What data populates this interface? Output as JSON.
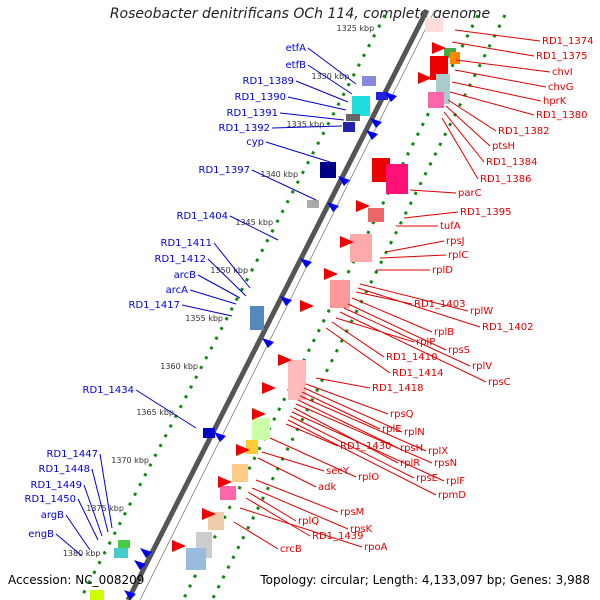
{
  "title": "Roseobacter denitrificans OCh 114, complete genome",
  "footer": {
    "accession": "Accession: NC_008209",
    "topology": "Topology: circular; Length: 4,133,097 bp; Genes: 3,988"
  },
  "colors": {
    "left_labels": "#0000cc",
    "right_labels": "#dd0000",
    "axis_major": "#555555",
    "axis_minor": "#999999",
    "ticks": "#118811"
  },
  "kbp_ticks": [
    "1325 kbp",
    "1330 kbp",
    "1335 kbp",
    "1340 kbp",
    "1345 kbp",
    "1350 kbp",
    "1355 kbp",
    "1360 kbp",
    "1365 kbp",
    "1370 kbp",
    "1375 kbp",
    "1380 kbp"
  ],
  "left_labels": [
    "etfA",
    "etfB",
    "RD1_1389",
    "RD1_1390",
    "RD1_1391",
    "RD1_1392",
    "cyp",
    "RD1_1397",
    "RD1_1404",
    "RD1_1411",
    "RD1_1412",
    "arcB",
    "arcA",
    "RD1_1417",
    "RD1_1434",
    "RD1_1447",
    "RD1_1448",
    "RD1_1449",
    "RD1_1450",
    "argB",
    "engB"
  ],
  "right_labels": [
    "RD1_1374",
    "RD1_1375",
    "chvI",
    "chvG",
    "hprK",
    "RD1_1380",
    "RD1_1382",
    "ptsH",
    "RD1_1384",
    "RD1_1386",
    "parC",
    "RD1_1395",
    "tufA",
    "rpsJ",
    "rplC",
    "rplD",
    "rplW",
    "RD1_1402",
    "RD1_1403",
    "rplB",
    "rpsS",
    "rplV",
    "rpsC",
    "rplP",
    "RD1_1410",
    "RD1_1414",
    "RD1_1418",
    "rpsQ",
    "rplN",
    "rplE",
    "rplX",
    "rpsH",
    "rpsN",
    "rplR",
    "rplF",
    "rpsE",
    "rpmD",
    "RD1_1430",
    "rplO",
    "secY",
    "adk",
    "rpsM",
    "rpsK",
    "rplQ",
    "RD1_1439",
    "rpoA",
    "crcB"
  ]
}
